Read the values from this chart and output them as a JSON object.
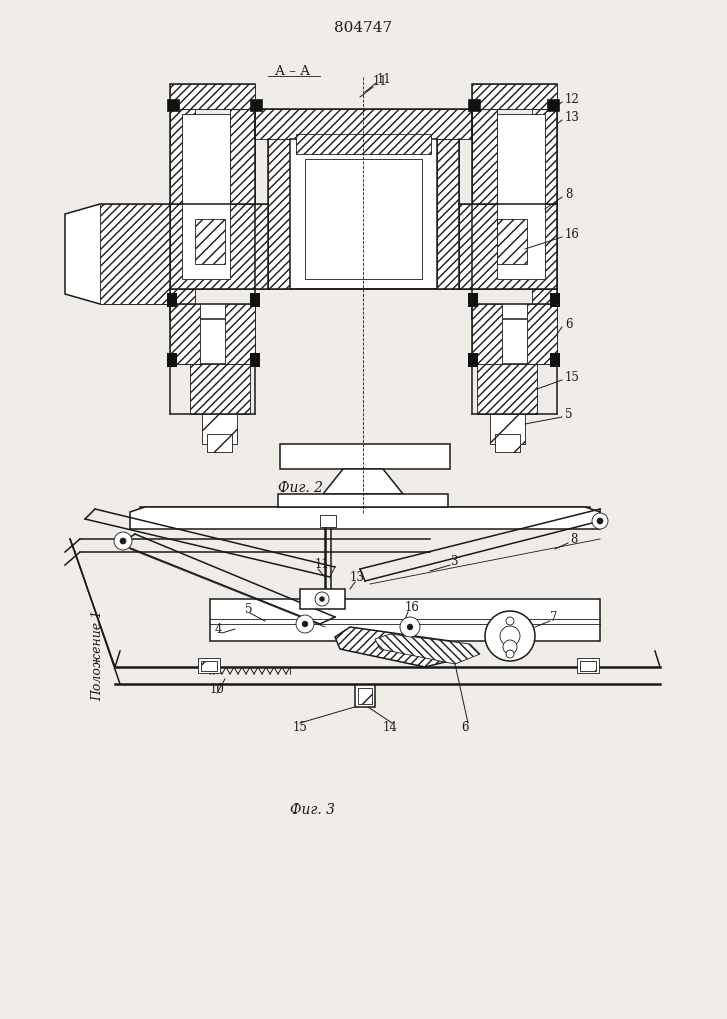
{
  "patent_number": "804747",
  "fig2_label": "Фиг. 2",
  "fig3_label": "Фиг. 3",
  "section_label": "A – A",
  "position_label": "Положение 1",
  "bg_color": "#f0ede8",
  "line_color": "#1a1a1a"
}
